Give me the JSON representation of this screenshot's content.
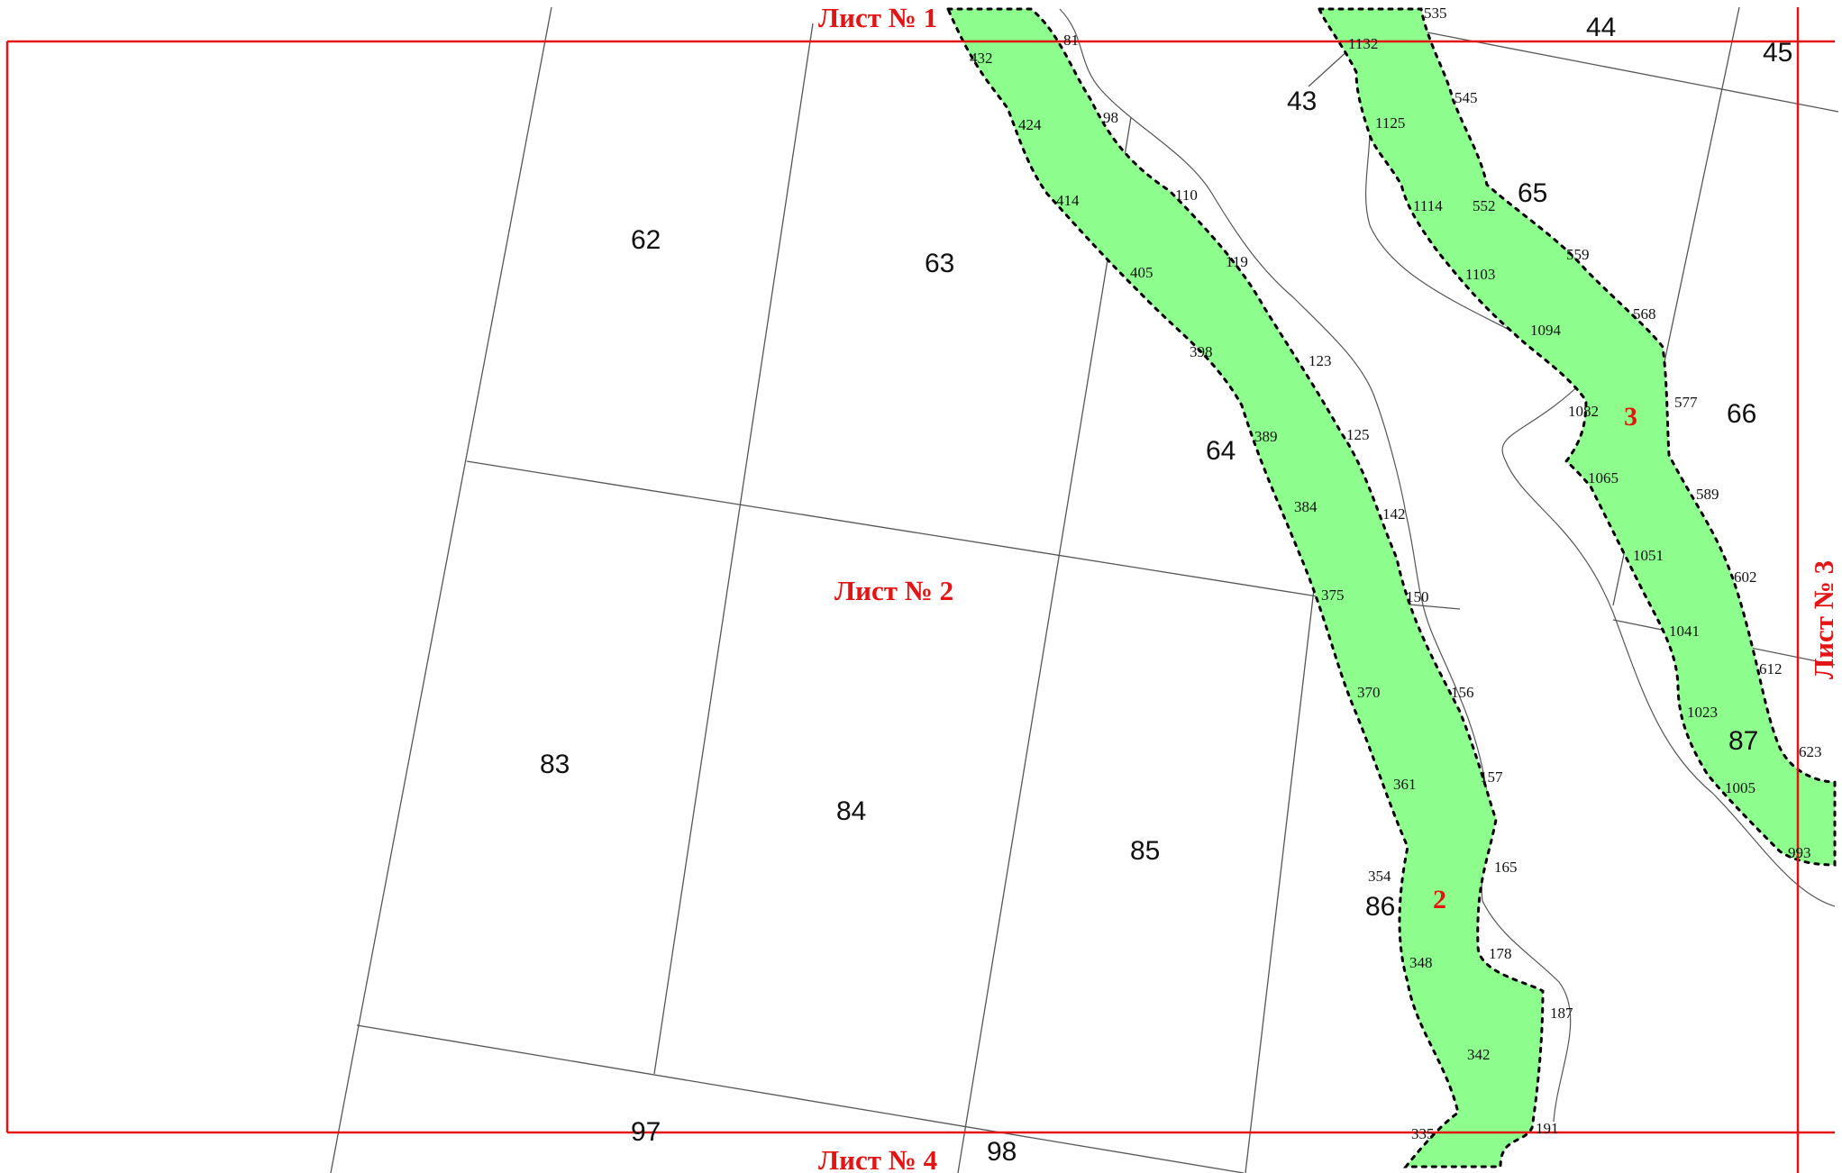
{
  "sheets": {
    "s1": "Лист № 1",
    "s2": "Лист № 2",
    "s3": "Лист № 3",
    "s4": "Лист № 4"
  },
  "zones": {
    "z2": "2",
    "z3": "3"
  },
  "parcels": {
    "p43": "43",
    "p44": "44",
    "p45": "45",
    "p62": "62",
    "p63": "63",
    "p64": "64",
    "p65": "65",
    "p66": "66",
    "p83": "83",
    "p84": "84",
    "p85": "85",
    "p86": "86",
    "p87": "87",
    "p97": "97",
    "p98": "98"
  },
  "points": {
    "n535": "535",
    "n1132": "1132",
    "n545": "545",
    "n1125": "1125",
    "n1114": "1114",
    "n552": "552",
    "n559": "559",
    "n1103": "1103",
    "n568": "568",
    "n1094": "1094",
    "n577": "577",
    "n1082": "1082",
    "n1065": "1065",
    "n589": "589",
    "n1051": "1051",
    "n602": "602",
    "n1041": "1041",
    "n612": "612",
    "n1023": "1023",
    "n623": "623",
    "n1005": "1005",
    "n993": "993",
    "n81": "81",
    "n432": "432",
    "n424": "424",
    "n98": "98",
    "n414": "414",
    "n110": "110",
    "n119": "119",
    "n405": "405",
    "n398": "398",
    "n123": "123",
    "n389": "389",
    "n125": "125",
    "n384": "384",
    "n142": "142",
    "n375": "375",
    "n150": "150",
    "n370": "370",
    "n156": "156",
    "n361": "361",
    "n157": "157",
    "n354": "354",
    "n165": "165",
    "n348": "348",
    "n178": "178",
    "n187": "187",
    "n342": "342",
    "n191": "191",
    "n335": "335"
  },
  "colors": {
    "strip_fill": "#8dfd8d",
    "sheet_line": "#e41414",
    "thin_line": "#555555",
    "vertex": "#000000"
  }
}
